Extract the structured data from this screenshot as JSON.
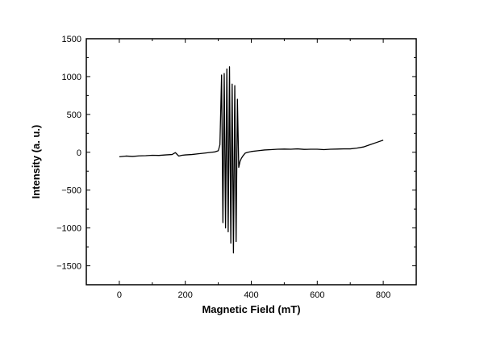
{
  "chart_data": {
    "type": "line",
    "title": "",
    "xlabel": "Magnetic Field (mT)",
    "ylabel": "Intensity (a. u.)",
    "xlim": [
      -100,
      900
    ],
    "ylim": [
      -1750,
      1500
    ],
    "xticks": [
      0,
      200,
      400,
      600,
      800
    ],
    "yticks": [
      -1500,
      -1000,
      -500,
      0,
      500,
      1000,
      1500
    ],
    "grid": false,
    "legend": "none",
    "line_color": "#000000",
    "series": [
      {
        "x": [
          0,
          20,
          40,
          60,
          80,
          100,
          120,
          140,
          160,
          170,
          180,
          190,
          200,
          220,
          240,
          260,
          280,
          290,
          300,
          305,
          310,
          314,
          318,
          322,
          326,
          330,
          334,
          338,
          342,
          346,
          350,
          354,
          358,
          362,
          366,
          370,
          376,
          382,
          390,
          400,
          420,
          440,
          460,
          480,
          500,
          520,
          540,
          560,
          580,
          600,
          620,
          640,
          660,
          680,
          700,
          720,
          740,
          760,
          780,
          800
        ],
        "values": [
          -60,
          -50,
          -55,
          -48,
          -45,
          -40,
          -42,
          -35,
          -30,
          -5,
          -50,
          -40,
          -35,
          -30,
          -20,
          -10,
          0,
          5,
          20,
          100,
          1020,
          -930,
          1040,
          -1000,
          1100,
          -1050,
          1130,
          -1200,
          900,
          -1330,
          880,
          -1180,
          700,
          -200,
          -120,
          -80,
          -40,
          -10,
          0,
          10,
          20,
          30,
          35,
          40,
          42,
          40,
          45,
          38,
          40,
          40,
          35,
          40,
          42,
          45,
          45,
          55,
          70,
          100,
          130,
          160
        ]
      }
    ]
  }
}
